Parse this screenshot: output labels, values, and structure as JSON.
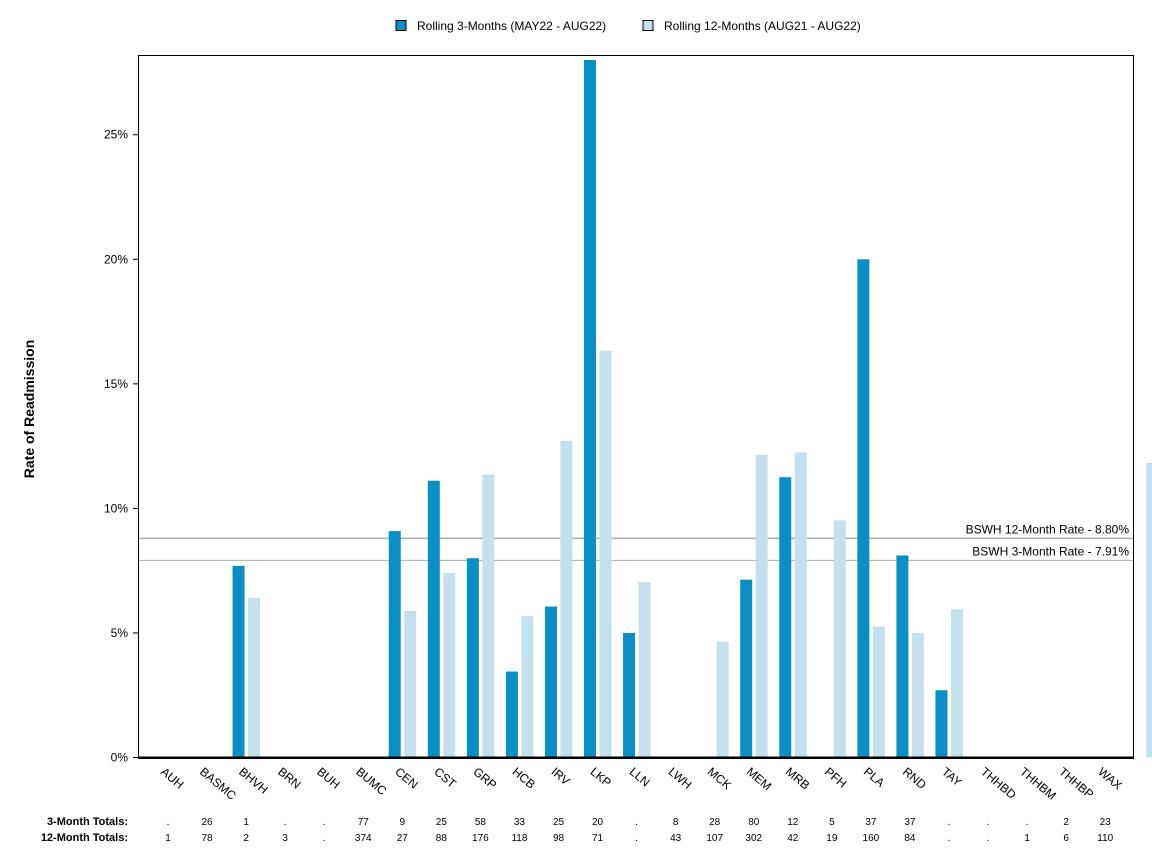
{
  "chart_data": {
    "type": "bar",
    "ylabel": "Rate of Readmission",
    "ylim": [
      0,
      28.3
    ],
    "yticks": [
      0,
      5,
      10,
      15,
      20,
      25
    ],
    "ytick_labels": [
      "0%",
      "5%",
      "10%",
      "15%",
      "20%",
      "25%"
    ],
    "categories": [
      "AUH",
      "BASMC",
      "BHVH",
      "BRN",
      "BUH",
      "BUMC",
      "CEN",
      "CST",
      "GRP",
      "HCB",
      "IRV",
      "LKP",
      "LLN",
      "LWH",
      "MCK",
      "MEM",
      "MRB",
      "PFH",
      "PLA",
      "RND",
      "TAY",
      "THHBD",
      "THHBM",
      "THHBP",
      "WAX"
    ],
    "series": [
      {
        "name": "Rolling 3-Months (MAY22 - AUG22)",
        "color": "#0a8fc4",
        "values": [
          0,
          7.69,
          0,
          0,
          0,
          9.09,
          11.11,
          8.0,
          3.45,
          6.06,
          28.0,
          5.0,
          0,
          0,
          7.14,
          11.25,
          0,
          20.0,
          8.11,
          2.7,
          0,
          0,
          0,
          0,
          0
        ]
      },
      {
        "name": "Rolling 12-Months (AUG21 - AUG22)",
        "color": "#c3e0ec",
        "values": [
          0,
          6.41,
          0,
          0,
          0,
          5.88,
          7.41,
          11.36,
          5.68,
          12.71,
          16.33,
          7.04,
          0,
          4.65,
          12.15,
          12.25,
          9.52,
          5.26,
          5.0,
          5.95,
          0,
          0,
          0,
          0,
          11.82
        ]
      }
    ],
    "legend_position": "top",
    "reference_lines": [
      {
        "label": "BSWH 12-Month Rate - 8.80%",
        "value": 8.8,
        "color": "#9e9e9e"
      },
      {
        "label": "BSWH  3-Month Rate - 7.91%",
        "value": 7.91,
        "color": "#b8b8b8"
      }
    ],
    "totals": {
      "three_month_label": "3-Month Totals:",
      "twelve_month_label": "12-Month Totals:",
      "three_month": [
        ".",
        "26",
        "1",
        ".",
        ".",
        "77",
        "9",
        "25",
        "58",
        "33",
        "25",
        "20",
        ".",
        "8",
        "28",
        "80",
        "12",
        "5",
        "37",
        "37",
        ".",
        ".",
        ".",
        "2",
        "23"
      ],
      "twelve_month": [
        "1",
        "78",
        "2",
        "3",
        ".",
        "374",
        "27",
        "88",
        "176",
        "118",
        "98",
        "71",
        ".",
        "43",
        "107",
        "302",
        "42",
        "19",
        "160",
        "84",
        ".",
        ".",
        "1",
        "6",
        "110"
      ]
    },
    "grid": false
  }
}
